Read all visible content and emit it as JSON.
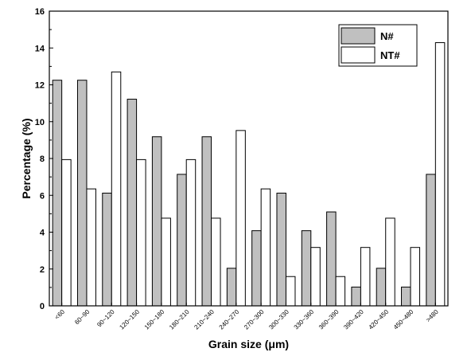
{
  "chart_data": {
    "type": "bar",
    "categories": [
      "<60",
      "60~90",
      "90~120",
      "120~150",
      "150~180",
      "180~210",
      "210~240",
      "240~270",
      "270~300",
      "300~330",
      "330~360",
      "360~390",
      "390~420",
      "420~450",
      "450~480",
      ">480"
    ],
    "series": [
      {
        "name": "N#",
        "color": "#c0c0c0",
        "values": [
          12.25,
          12.25,
          6.12,
          11.22,
          9.18,
          7.14,
          9.18,
          2.04,
          4.08,
          6.12,
          4.08,
          5.1,
          1.02,
          2.04,
          1.02,
          7.14
        ]
      },
      {
        "name": "NT#",
        "color": "#ffffff",
        "values": [
          7.94,
          6.35,
          12.7,
          7.94,
          4.76,
          7.94,
          4.76,
          9.52,
          6.35,
          1.59,
          3.17,
          1.59,
          3.17,
          4.76,
          3.17,
          14.29
        ]
      }
    ],
    "xlabel": "Grain size (μm)",
    "ylabel": "Percentage (%)",
    "ylim": [
      0,
      16
    ],
    "yticks": [
      "0",
      "2",
      "4",
      "6",
      "8",
      "10",
      "12",
      "14",
      "16"
    ],
    "grid": false,
    "legend_position": "top-right"
  }
}
